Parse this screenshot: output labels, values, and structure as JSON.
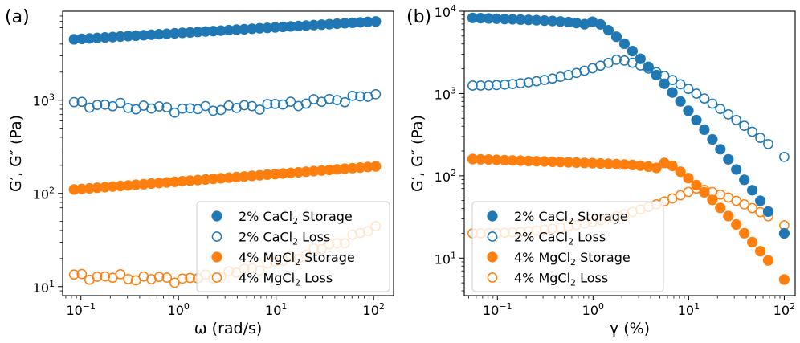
{
  "chart_data": [
    {
      "type": "scatter",
      "panel_label": "(a)",
      "xscale": "log",
      "yscale": "log",
      "xlabel": "ω (rad/s)",
      "ylabel": "G′, G″ (Pa)",
      "xlim": [
        0.065,
        160
      ],
      "ylim": [
        8,
        9000
      ],
      "xticks": [
        {
          "value": 0.1,
          "base": "10",
          "exp": "−1"
        },
        {
          "value": 1,
          "base": "10",
          "exp": "0"
        },
        {
          "value": 10,
          "base": "10",
          "exp": "1"
        },
        {
          "value": 100,
          "base": "10",
          "exp": "2"
        }
      ],
      "yticks": [
        {
          "value": 10,
          "base": "10",
          "exp": "1"
        },
        {
          "value": 100,
          "base": "10",
          "exp": "2"
        },
        {
          "value": 1000,
          "base": "10",
          "exp": "3"
        }
      ],
      "legend_location": "lower-right",
      "series": [
        {
          "name": "2% CaCl2 Storage",
          "label_parts": [
            "2% CaCl",
            "2",
            " Storage"
          ],
          "color": "#1f77b4",
          "filled": true,
          "y_start": 4500,
          "y_end": 7000
        },
        {
          "name": "2% CaCl2 Loss",
          "label_parts": [
            "2% CaCl",
            "2",
            " Loss"
          ],
          "color": "#1f77b4",
          "filled": false,
          "y_start": 920,
          "y_mid": 800,
          "y_end": 1120
        },
        {
          "name": "4% MgCl2 Storage",
          "label_parts": [
            "4% MgCl",
            "2",
            " Storage"
          ],
          "color": "#ff7f0e",
          "filled": true,
          "y_start": 110,
          "y_end": 195
        },
        {
          "name": "4% MgCl2 Loss",
          "label_parts": [
            "4% MgCl",
            "2",
            " Loss"
          ],
          "color": "#ff7f0e",
          "filled": false,
          "y_start": 13,
          "y_mid": 12,
          "y_end": 43
        }
      ]
    },
    {
      "type": "scatter",
      "panel_label": "(b)",
      "xscale": "log",
      "yscale": "log",
      "xlabel": "γ (%)",
      "ylabel": "G′, G″ (Pa)",
      "xlim": [
        0.045,
        130
      ],
      "ylim": [
        3.5,
        10000
      ],
      "xticks": [
        {
          "value": 0.1,
          "base": "10",
          "exp": "−1"
        },
        {
          "value": 1,
          "base": "10",
          "exp": "0"
        },
        {
          "value": 10,
          "base": "10",
          "exp": "1"
        },
        {
          "value": 100,
          "base": "10",
          "exp": "2"
        }
      ],
      "yticks": [
        {
          "value": 10,
          "base": "10",
          "exp": "1"
        },
        {
          "value": 100,
          "base": "10",
          "exp": "2"
        },
        {
          "value": 1000,
          "base": "10",
          "exp": "3"
        },
        {
          "value": 10000,
          "base": "10",
          "exp": "4"
        }
      ],
      "legend_location": "lower-left",
      "series": [
        {
          "name": "2% CaCl2 Storage",
          "label_parts": [
            "2% CaCl",
            "2",
            " Storage"
          ],
          "color": "#1f77b4",
          "filled": true,
          "plateau": 8300,
          "yield_strain": 0.9,
          "y_end": 20
        },
        {
          "name": "2% CaCl2 Loss",
          "label_parts": [
            "2% CaCl",
            "2",
            " Loss"
          ],
          "color": "#1f77b4",
          "filled": false,
          "y_start": 1250,
          "y_peak": 2600,
          "peak_strain": 1.8,
          "y_end": 170
        },
        {
          "name": "4% MgCl2 Storage",
          "label_parts": [
            "4% MgCl",
            "2",
            " Storage"
          ],
          "color": "#ff7f0e",
          "filled": true,
          "plateau": 160,
          "yield_strain": 5,
          "y_end": 5.5
        },
        {
          "name": "4% MgCl2 Loss",
          "label_parts": [
            "4% MgCl",
            "2",
            " Loss"
          ],
          "color": "#ff7f0e",
          "filled": false,
          "y_start": 20,
          "y_peak": 70,
          "peak_strain": 12,
          "y_end": 25
        }
      ]
    }
  ]
}
